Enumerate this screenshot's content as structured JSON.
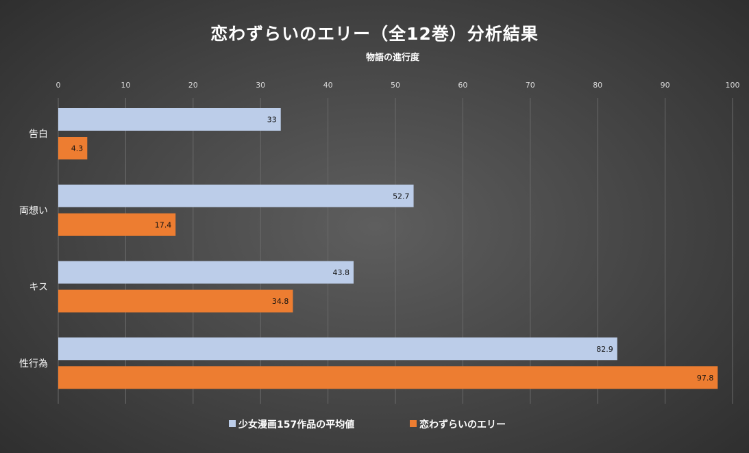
{
  "chart_data": {
    "type": "bar",
    "orientation": "horizontal",
    "title": "恋わずらいのエリー（全12巻）分析結果",
    "xlabel": "物語の進行度",
    "ylabel": "",
    "xlim": [
      0,
      100
    ],
    "xticks": [
      0,
      10,
      20,
      30,
      40,
      50,
      60,
      70,
      80,
      90,
      100
    ],
    "categories": [
      "告白",
      "両想い",
      "キス",
      "性行為"
    ],
    "series": [
      {
        "name": "少女漫画157作品の平均値",
        "color": "#bccde9",
        "values": [
          33,
          52.7,
          43.8,
          82.9
        ]
      },
      {
        "name": "恋わずらいのエリー",
        "color": "#ed7d31",
        "values": [
          4.3,
          17.4,
          34.8,
          97.8
        ]
      }
    ],
    "grid": true,
    "xaxis_position": "top",
    "legend_position": "bottom"
  }
}
